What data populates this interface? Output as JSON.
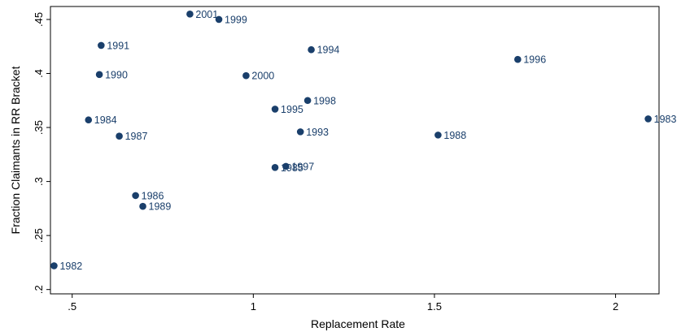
{
  "chart_data": {
    "type": "scatter",
    "title": "",
    "xlabel": "Replacement Rate",
    "ylabel": "Fraction Claimants in RR Bracket",
    "xlim": [
      0.44,
      2.12
    ],
    "ylim": [
      0.196,
      0.462
    ],
    "x_ticks": [
      0.5,
      1,
      1.5,
      2
    ],
    "x_tick_labels": [
      ".5",
      "1",
      "1.5",
      "2"
    ],
    "y_ticks": [
      0.2,
      0.25,
      0.3,
      0.35,
      0.4,
      0.45
    ],
    "y_tick_labels": [
      ".2",
      ".25",
      ".3",
      ".35",
      ".4",
      ".45"
    ],
    "grid": false,
    "marker_color": "#1a3f6b",
    "label_color": "#1a3f6b",
    "points": [
      {
        "label": "1982",
        "x": 0.45,
        "y": 0.222
      },
      {
        "label": "1983",
        "x": 2.09,
        "y": 0.358
      },
      {
        "label": "1984",
        "x": 0.545,
        "y": 0.357
      },
      {
        "label": "1985",
        "x": 1.06,
        "y": 0.313
      },
      {
        "label": "1986",
        "x": 0.675,
        "y": 0.287
      },
      {
        "label": "1987",
        "x": 0.63,
        "y": 0.342
      },
      {
        "label": "1988",
        "x": 1.51,
        "y": 0.343
      },
      {
        "label": "1989",
        "x": 0.695,
        "y": 0.277
      },
      {
        "label": "1990",
        "x": 0.575,
        "y": 0.399
      },
      {
        "label": "1991",
        "x": 0.58,
        "y": 0.426
      },
      {
        "label": "1993",
        "x": 1.13,
        "y": 0.346
      },
      {
        "label": "1994",
        "x": 1.16,
        "y": 0.422
      },
      {
        "label": "1995",
        "x": 1.06,
        "y": 0.367
      },
      {
        "label": "1996",
        "x": 1.73,
        "y": 0.413
      },
      {
        "label": "1997",
        "x": 1.09,
        "y": 0.314
      },
      {
        "label": "1998",
        "x": 1.15,
        "y": 0.375
      },
      {
        "label": "1999",
        "x": 0.905,
        "y": 0.45
      },
      {
        "label": "2000",
        "x": 0.98,
        "y": 0.398
      },
      {
        "label": "2001",
        "x": 0.825,
        "y": 0.455
      }
    ]
  }
}
